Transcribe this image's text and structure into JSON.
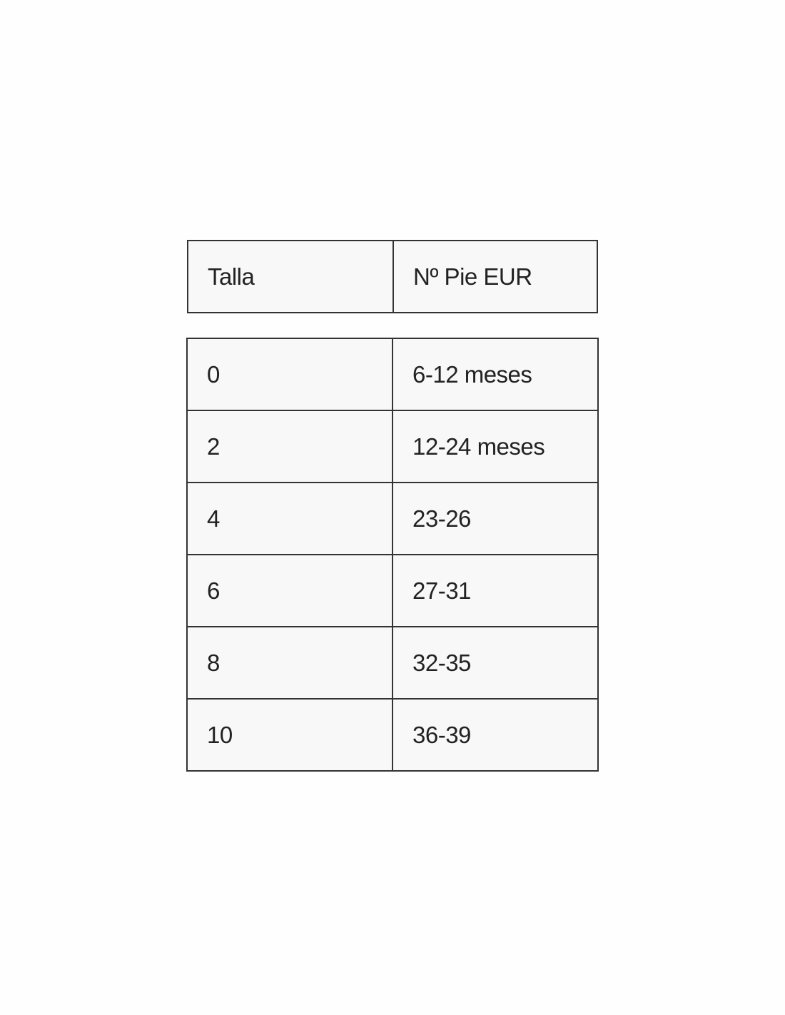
{
  "header": {
    "columns": [
      "Talla",
      "Nº Pie EUR"
    ]
  },
  "rows": [
    [
      "0",
      "6-12 meses"
    ],
    [
      "2",
      "12-24 meses"
    ],
    [
      "4",
      "23-26"
    ],
    [
      "6",
      "27-31"
    ],
    [
      "8",
      "32-35"
    ],
    [
      "10",
      "36-39"
    ]
  ]
}
